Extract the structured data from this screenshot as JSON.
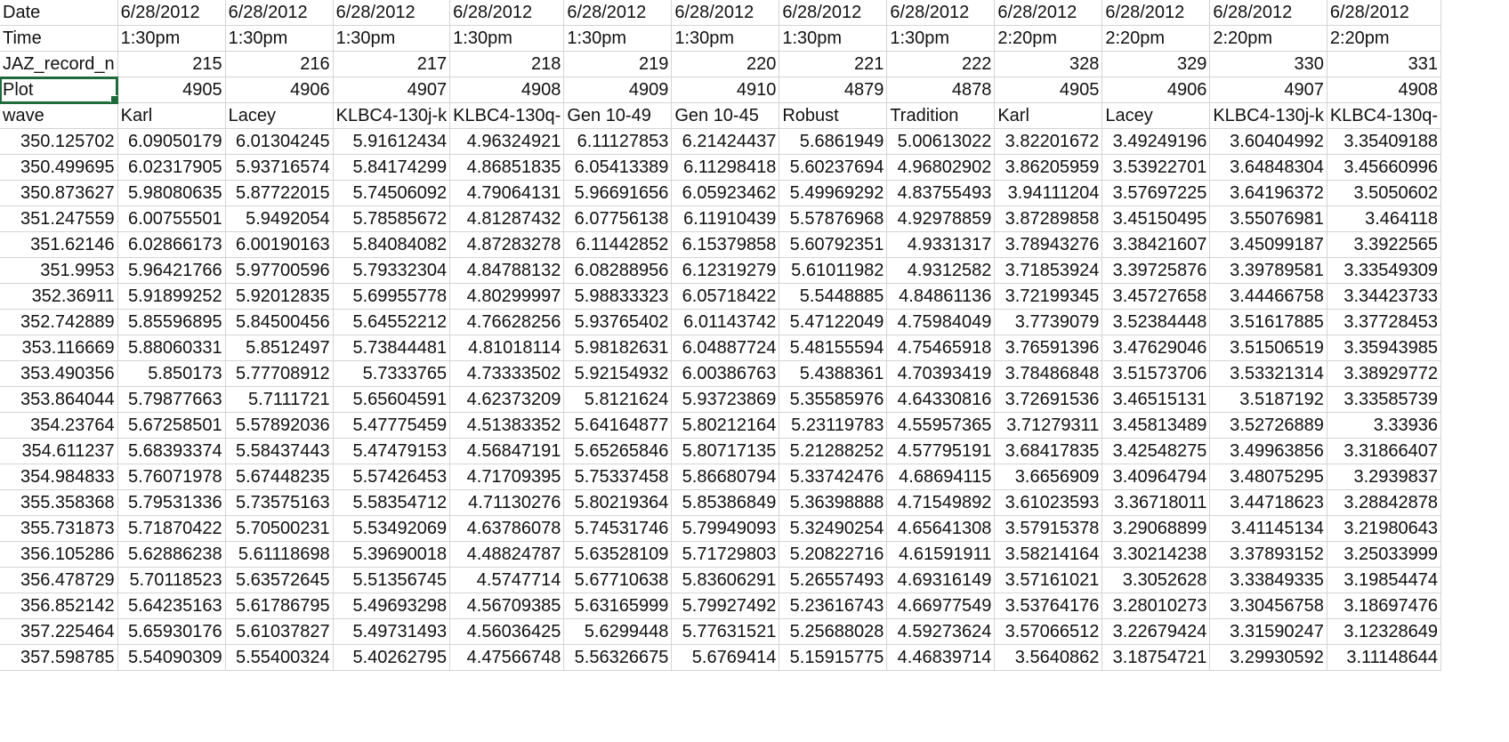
{
  "spreadsheet": {
    "selected_cell": "Plot",
    "header_rows": [
      [
        "Date",
        "6/28/2012",
        "6/28/2012",
        "6/28/2012",
        "6/28/2012",
        "6/28/2012",
        "6/28/2012",
        "6/28/2012",
        "6/28/2012",
        "6/28/2012",
        "6/28/2012",
        "6/28/2012",
        "6/28/2012"
      ],
      [
        "Time",
        "1:30pm",
        "1:30pm",
        "1:30pm",
        "1:30pm",
        "1:30pm",
        "1:30pm",
        "1:30pm",
        "1:30pm",
        "2:20pm",
        "2:20pm",
        "2:20pm",
        "2:20pm"
      ],
      [
        "JAZ_record_n",
        "215",
        "216",
        "217",
        "218",
        "219",
        "220",
        "221",
        "222",
        "328",
        "329",
        "330",
        "331"
      ],
      [
        "Plot",
        "4905",
        "4906",
        "4907",
        "4908",
        "4909",
        "4910",
        "4879",
        "4878",
        "4905",
        "4906",
        "4907",
        "4908"
      ],
      [
        "wave",
        "Karl",
        "Lacey",
        "KLBC4-130j-k",
        "KLBC4-130q-",
        "Gen 10-49",
        "Gen 10-45",
        "Robust",
        "Tradition",
        "Karl",
        "Lacey",
        "KLBC4-130j-k",
        "KLBC4-130q-"
      ]
    ],
    "data_rows": [
      [
        "350.125702",
        "6.09050179",
        "6.01304245",
        "5.91612434",
        "4.96324921",
        "6.11127853",
        "6.21424437",
        "5.6861949",
        "5.00613022",
        "3.82201672",
        "3.49249196",
        "3.60404992",
        "3.35409188"
      ],
      [
        "350.499695",
        "6.02317905",
        "5.93716574",
        "5.84174299",
        "4.86851835",
        "6.05413389",
        "6.11298418",
        "5.60237694",
        "4.96802902",
        "3.86205959",
        "3.53922701",
        "3.64848304",
        "3.45660996"
      ],
      [
        "350.873627",
        "5.98080635",
        "5.87722015",
        "5.74506092",
        "4.79064131",
        "5.96691656",
        "6.05923462",
        "5.49969292",
        "4.83755493",
        "3.94111204",
        "3.57697225",
        "3.64196372",
        "3.5050602"
      ],
      [
        "351.247559",
        "6.00755501",
        "5.9492054",
        "5.78585672",
        "4.81287432",
        "6.07756138",
        "6.11910439",
        "5.57876968",
        "4.92978859",
        "3.87289858",
        "3.45150495",
        "3.55076981",
        "3.464118"
      ],
      [
        "351.62146",
        "6.02866173",
        "6.00190163",
        "5.84084082",
        "4.87283278",
        "6.11442852",
        "6.15379858",
        "5.60792351",
        "4.9331317",
        "3.78943276",
        "3.38421607",
        "3.45099187",
        "3.3922565"
      ],
      [
        "351.9953",
        "5.96421766",
        "5.97700596",
        "5.79332304",
        "4.84788132",
        "6.08288956",
        "6.12319279",
        "5.61011982",
        "4.9312582",
        "3.71853924",
        "3.39725876",
        "3.39789581",
        "3.33549309"
      ],
      [
        "352.36911",
        "5.91899252",
        "5.92012835",
        "5.69955778",
        "4.80299997",
        "5.98833323",
        "6.05718422",
        "5.5448885",
        "4.84861136",
        "3.72199345",
        "3.45727658",
        "3.44466758",
        "3.34423733"
      ],
      [
        "352.742889",
        "5.85596895",
        "5.84500456",
        "5.64552212",
        "4.76628256",
        "5.93765402",
        "6.01143742",
        "5.47122049",
        "4.75984049",
        "3.7739079",
        "3.52384448",
        "3.51617885",
        "3.37728453"
      ],
      [
        "353.116669",
        "5.88060331",
        "5.8512497",
        "5.73844481",
        "4.81018114",
        "5.98182631",
        "6.04887724",
        "5.48155594",
        "4.75465918",
        "3.76591396",
        "3.47629046",
        "3.51506519",
        "3.35943985"
      ],
      [
        "353.490356",
        "5.850173",
        "5.77708912",
        "5.7333765",
        "4.73333502",
        "5.92154932",
        "6.00386763",
        "5.4388361",
        "4.70393419",
        "3.78486848",
        "3.51573706",
        "3.53321314",
        "3.38929772"
      ],
      [
        "353.864044",
        "5.79877663",
        "5.7111721",
        "5.65604591",
        "4.62373209",
        "5.8121624",
        "5.93723869",
        "5.35585976",
        "4.64330816",
        "3.72691536",
        "3.46515131",
        "3.5187192",
        "3.33585739"
      ],
      [
        "354.23764",
        "5.67258501",
        "5.57892036",
        "5.47775459",
        "4.51383352",
        "5.64164877",
        "5.80212164",
        "5.23119783",
        "4.55957365",
        "3.71279311",
        "3.45813489",
        "3.52726889",
        "3.33936"
      ],
      [
        "354.611237",
        "5.68393374",
        "5.58437443",
        "5.47479153",
        "4.56847191",
        "5.65265846",
        "5.80717135",
        "5.21288252",
        "4.57795191",
        "3.68417835",
        "3.42548275",
        "3.49963856",
        "3.31866407"
      ],
      [
        "354.984833",
        "5.76071978",
        "5.67448235",
        "5.57426453",
        "4.71709395",
        "5.75337458",
        "5.86680794",
        "5.33742476",
        "4.68694115",
        "3.6656909",
        "3.40964794",
        "3.48075295",
        "3.2939837"
      ],
      [
        "355.358368",
        "5.79531336",
        "5.73575163",
        "5.58354712",
        "4.71130276",
        "5.80219364",
        "5.85386849",
        "5.36398888",
        "4.71549892",
        "3.61023593",
        "3.36718011",
        "3.44718623",
        "3.28842878"
      ],
      [
        "355.731873",
        "5.71870422",
        "5.70500231",
        "5.53492069",
        "4.63786078",
        "5.74531746",
        "5.79949093",
        "5.32490254",
        "4.65641308",
        "3.57915378",
        "3.29068899",
        "3.41145134",
        "3.21980643"
      ],
      [
        "356.105286",
        "5.62886238",
        "5.61118698",
        "5.39690018",
        "4.48824787",
        "5.63528109",
        "5.71729803",
        "5.20822716",
        "4.61591911",
        "3.58214164",
        "3.30214238",
        "3.37893152",
        "3.25033999"
      ],
      [
        "356.478729",
        "5.70118523",
        "5.63572645",
        "5.51356745",
        "4.5747714",
        "5.67710638",
        "5.83606291",
        "5.26557493",
        "4.69316149",
        "3.57161021",
        "3.3052628",
        "3.33849335",
        "3.19854474"
      ],
      [
        "356.852142",
        "5.64235163",
        "5.61786795",
        "5.49693298",
        "4.56709385",
        "5.63165999",
        "5.79927492",
        "5.23616743",
        "4.66977549",
        "3.53764176",
        "3.28010273",
        "3.30456758",
        "3.18697476"
      ],
      [
        "357.225464",
        "5.65930176",
        "5.61037827",
        "5.49731493",
        "4.56036425",
        "5.6299448",
        "5.77631521",
        "5.25688028",
        "4.59273624",
        "3.57066512",
        "3.22679424",
        "3.31590247",
        "3.12328649"
      ],
      [
        "357.598785",
        "5.54090309",
        "5.55400324",
        "5.40262795",
        "4.47566748",
        "5.56326675",
        "5.6769414",
        "5.15915775",
        "4.46839714",
        "3.5640862",
        "3.18754721",
        "3.29930592",
        "3.11148644"
      ]
    ]
  }
}
